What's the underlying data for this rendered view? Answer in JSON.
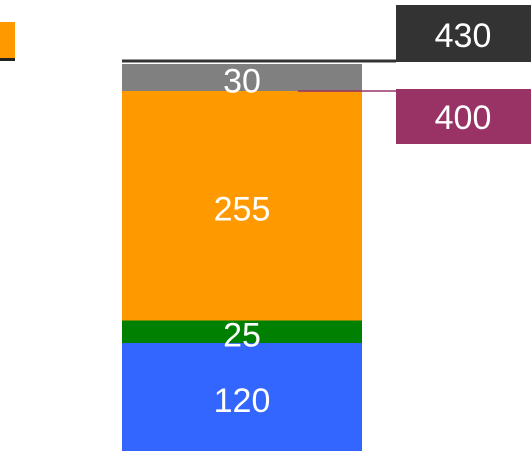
{
  "chart_data": {
    "type": "stacked_bar",
    "series": [
      {
        "color": "#3366ff",
        "values": [
          120
        ]
      },
      {
        "color": "#008000",
        "values": [
          25
        ]
      },
      {
        "color": "#ff9900",
        "values": [
          255
        ]
      },
      {
        "color": "#808080",
        "values": [
          30
        ]
      }
    ],
    "reference_lines": [
      {
        "value": 430,
        "color": "#333333"
      },
      {
        "value": 400,
        "color": "#993366"
      }
    ],
    "ylim": [
      0,
      500
    ]
  }
}
